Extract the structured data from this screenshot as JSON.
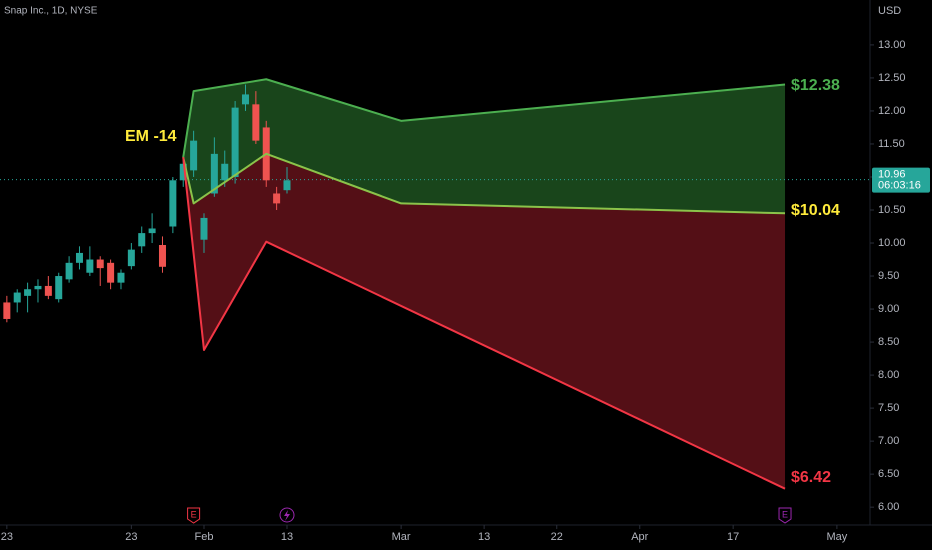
{
  "chart_data": {
    "type": "candlestick",
    "title": "Snap Inc., 1D, NYSE",
    "currency": "USD",
    "candles": {
      "x": [
        -19,
        -18,
        -17,
        -16,
        -15,
        -14,
        -13,
        -12,
        -11,
        -10,
        -9,
        -8,
        -7,
        -6,
        -5,
        -4,
        -3,
        -2,
        -1,
        0,
        1,
        2,
        3,
        4,
        5,
        6,
        7,
        8
      ],
      "open": [
        9.1,
        9.1,
        9.2,
        9.3,
        9.35,
        9.15,
        9.45,
        9.7,
        9.55,
        9.75,
        9.7,
        9.4,
        9.65,
        9.95,
        10.15,
        9.97,
        10.25,
        10.95,
        11.1,
        10.05,
        10.75,
        10.95,
        11.0,
        12.1,
        12.1,
        11.75,
        10.75,
        10.8
      ],
      "high": [
        9.2,
        9.3,
        9.4,
        9.45,
        9.5,
        9.55,
        9.8,
        9.95,
        9.95,
        9.8,
        9.75,
        9.6,
        10.0,
        10.25,
        10.45,
        10.1,
        11.0,
        11.3,
        11.7,
        10.45,
        11.6,
        11.4,
        12.15,
        12.4,
        12.3,
        11.85,
        10.85,
        11.15
      ],
      "low": [
        8.8,
        8.95,
        8.95,
        9.1,
        9.15,
        9.1,
        9.4,
        9.6,
        9.5,
        9.35,
        9.3,
        9.3,
        9.6,
        9.85,
        10.0,
        9.55,
        10.15,
        10.85,
        11.0,
        9.85,
        10.7,
        10.85,
        10.9,
        12.0,
        11.5,
        10.85,
        10.5,
        10.75
      ],
      "close": [
        8.85,
        9.25,
        9.3,
        9.35,
        9.2,
        9.5,
        9.7,
        9.85,
        9.75,
        9.62,
        9.4,
        9.55,
        9.9,
        10.15,
        10.22,
        9.64,
        10.95,
        11.2,
        11.55,
        10.38,
        11.35,
        11.2,
        12.05,
        12.25,
        11.55,
        10.95,
        10.6,
        10.95
      ],
      "up_color": "#26a69a",
      "down_color": "#ef5350"
    },
    "lines": [
      {
        "color": "#4caf50",
        "x": [
          -2,
          -1,
          6,
          19,
          56
        ],
        "values": [
          11.3,
          12.3,
          12.48,
          11.85,
          12.4
        ]
      },
      {
        "color": "#8bc34a",
        "x": [
          -2,
          -1,
          6,
          19,
          56
        ],
        "values": [
          11.3,
          10.6,
          11.35,
          10.6,
          10.45
        ]
      },
      {
        "color": "#f23645",
        "x": [
          -2,
          0,
          6,
          56
        ],
        "values": [
          11.3,
          8.38,
          10.02,
          6.28
        ]
      }
    ],
    "fills": [
      {
        "color": "rgba(46,125,50,0.55)",
        "between": [
          0,
          1
        ]
      },
      {
        "color": "rgba(136,24,36,0.62)",
        "between": [
          1,
          2
        ]
      }
    ],
    "annotations": [
      "EM -14",
      "$12.38",
      "$10.04",
      "$6.42"
    ],
    "last_price": 10.96,
    "countdown": "06:03:16",
    "events": [
      {
        "x": -1,
        "label": "E",
        "color": "#f23645"
      },
      {
        "x": 56,
        "label": "E",
        "color": "#9c27b0"
      }
    ],
    "xlim": [
      -19.66,
      64.19
    ],
    "ylim": [
      5.73,
      13.68
    ],
    "xticks": [
      {
        "value": -19,
        "label": "23"
      },
      {
        "value": -7,
        "label": "23"
      },
      {
        "value": 0,
        "label": "Feb"
      },
      {
        "value": 8,
        "label": "13"
      },
      {
        "value": 19,
        "label": "Mar"
      },
      {
        "value": 27,
        "label": "13"
      },
      {
        "value": 34,
        "label": "22"
      },
      {
        "value": 42,
        "label": "Apr"
      },
      {
        "value": 51,
        "label": "17"
      },
      {
        "value": 61,
        "label": "May"
      }
    ],
    "yticks": [
      {
        "value": 13,
        "label": "13.00"
      },
      {
        "value": 12.5,
        "label": "12.50"
      },
      {
        "value": 12,
        "label": "12.00"
      },
      {
        "value": 11.5,
        "label": "11.50"
      },
      {
        "value": 11,
        "label": "11.00"
      },
      {
        "value": 10.5,
        "label": "10.50"
      },
      {
        "value": 10,
        "label": "10.00"
      },
      {
        "value": 9.5,
        "label": "9.50"
      },
      {
        "value": 9,
        "label": "9.00"
      },
      {
        "value": 8.5,
        "label": "8.50"
      },
      {
        "value": 8,
        "label": "8.00"
      },
      {
        "value": 7.5,
        "label": "7.50"
      },
      {
        "value": 7,
        "label": "7.00"
      },
      {
        "value": 6.5,
        "label": "6.50"
      },
      {
        "value": 6,
        "label": "6.00"
      }
    ]
  }
}
